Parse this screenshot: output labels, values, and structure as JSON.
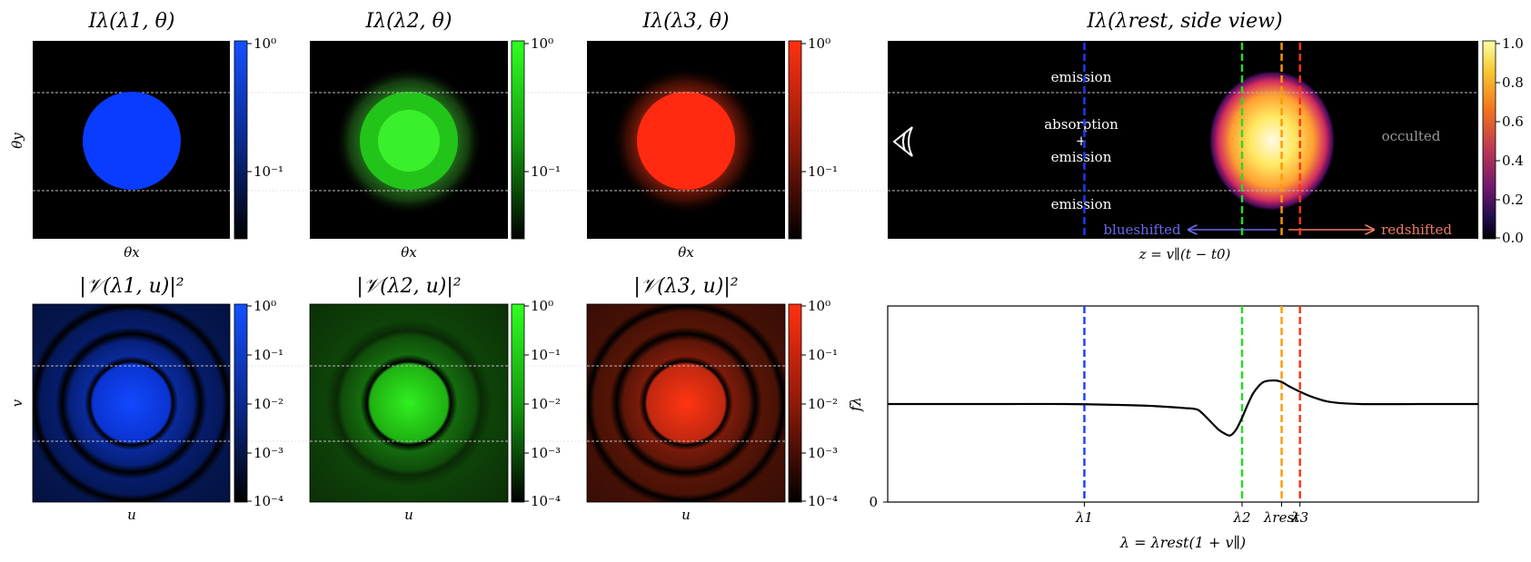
{
  "panels": {
    "top": [
      {
        "title": "Iλ(λ1, θ)",
        "cmap": "blue",
        "cbar_ticks": [
          "10⁰",
          "10⁻¹"
        ],
        "xlabel": "θx",
        "ylabel": "θy"
      },
      {
        "title": "Iλ(λ2, θ)",
        "cmap": "green",
        "cbar_ticks": [
          "10⁰",
          "10⁻¹"
        ],
        "xlabel": "θx",
        "ylabel": ""
      },
      {
        "title": "Iλ(λ3, θ)",
        "cmap": "red",
        "cbar_ticks": [
          "10⁰",
          "10⁻¹"
        ],
        "xlabel": "θx",
        "ylabel": ""
      }
    ],
    "bottom": [
      {
        "title": "|𝒱(λ1, u)|²",
        "cmap": "blue",
        "cbar_ticks": [
          "10⁰",
          "10⁻¹",
          "10⁻²",
          "10⁻³",
          "10⁻⁴"
        ],
        "xlabel": "u",
        "ylabel": "v"
      },
      {
        "title": "|𝒱(λ2, u)|²",
        "cmap": "green",
        "cbar_ticks": [
          "10⁰",
          "10⁻¹",
          "10⁻²",
          "10⁻³",
          "10⁻⁴"
        ],
        "xlabel": "u",
        "ylabel": ""
      },
      {
        "title": "|𝒱(λ3, u)|²",
        "cmap": "red",
        "cbar_ticks": [
          "10⁰",
          "10⁻¹",
          "10⁻²",
          "10⁻³",
          "10⁻⁴"
        ],
        "xlabel": "u",
        "ylabel": ""
      }
    ],
    "side_view": {
      "title": "Iλ(λrest, side view)",
      "xlabel": "z = v∥(t − t0)",
      "cbar_ticks": [
        "1.0",
        "0.8",
        "0.6",
        "0.4",
        "0.2",
        "0.0"
      ],
      "labels": {
        "emission_top": "emission",
        "absorption": "absorption",
        "plus": "+",
        "emission_mid": "emission",
        "emission_bottom": "emission",
        "occulted": "occulted",
        "blueshifted": "blueshifted",
        "redshifted": "redshifted"
      }
    }
  },
  "colors": {
    "blue": "#0a3cff",
    "green": "#22e01a",
    "red": "#ff2a10",
    "lambda1_line": "#1a3cff",
    "lambda2_line": "#22dd22",
    "lambda_rest_line": "#ff9900",
    "lambda3_line": "#ff3311",
    "blueshifted": "#6a6aee",
    "redshifted": "#f07a66"
  },
  "chart_data": {
    "type": "line",
    "title": "",
    "xlabel": "λ = λrest(1 + v∥)",
    "ylabel": "fλ",
    "y_ticks": [
      "0"
    ],
    "xlim": [
      0,
      1
    ],
    "ylim": [
      0,
      1.0
    ],
    "vlines": [
      {
        "x": 0.333,
        "label": "λ1",
        "color_key": "lambda1_line"
      },
      {
        "x": 0.6,
        "label": "λ2",
        "color_key": "lambda2_line"
      },
      {
        "x": 0.667,
        "label": "λrest",
        "color_key": "lambda_rest_line"
      },
      {
        "x": 0.698,
        "label": "λ3",
        "color_key": "lambda3_line"
      }
    ],
    "series": [
      {
        "x": [
          0.0,
          0.1,
          0.2,
          0.3,
          0.4,
          0.45,
          0.5,
          0.52,
          0.53,
          0.55,
          0.56,
          0.57,
          0.58,
          0.59,
          0.6,
          0.61,
          0.62,
          0.635,
          0.65,
          0.665,
          0.68,
          0.7,
          0.72,
          0.75,
          0.8,
          0.9,
          1.0
        ],
        "y": [
          0.5,
          0.5,
          0.5,
          0.5,
          0.495,
          0.49,
          0.48,
          0.475,
          0.46,
          0.4,
          0.37,
          0.35,
          0.34,
          0.37,
          0.43,
          0.5,
          0.56,
          0.61,
          0.62,
          0.615,
          0.59,
          0.56,
          0.535,
          0.51,
          0.5,
          0.5,
          0.5
        ]
      }
    ]
  }
}
